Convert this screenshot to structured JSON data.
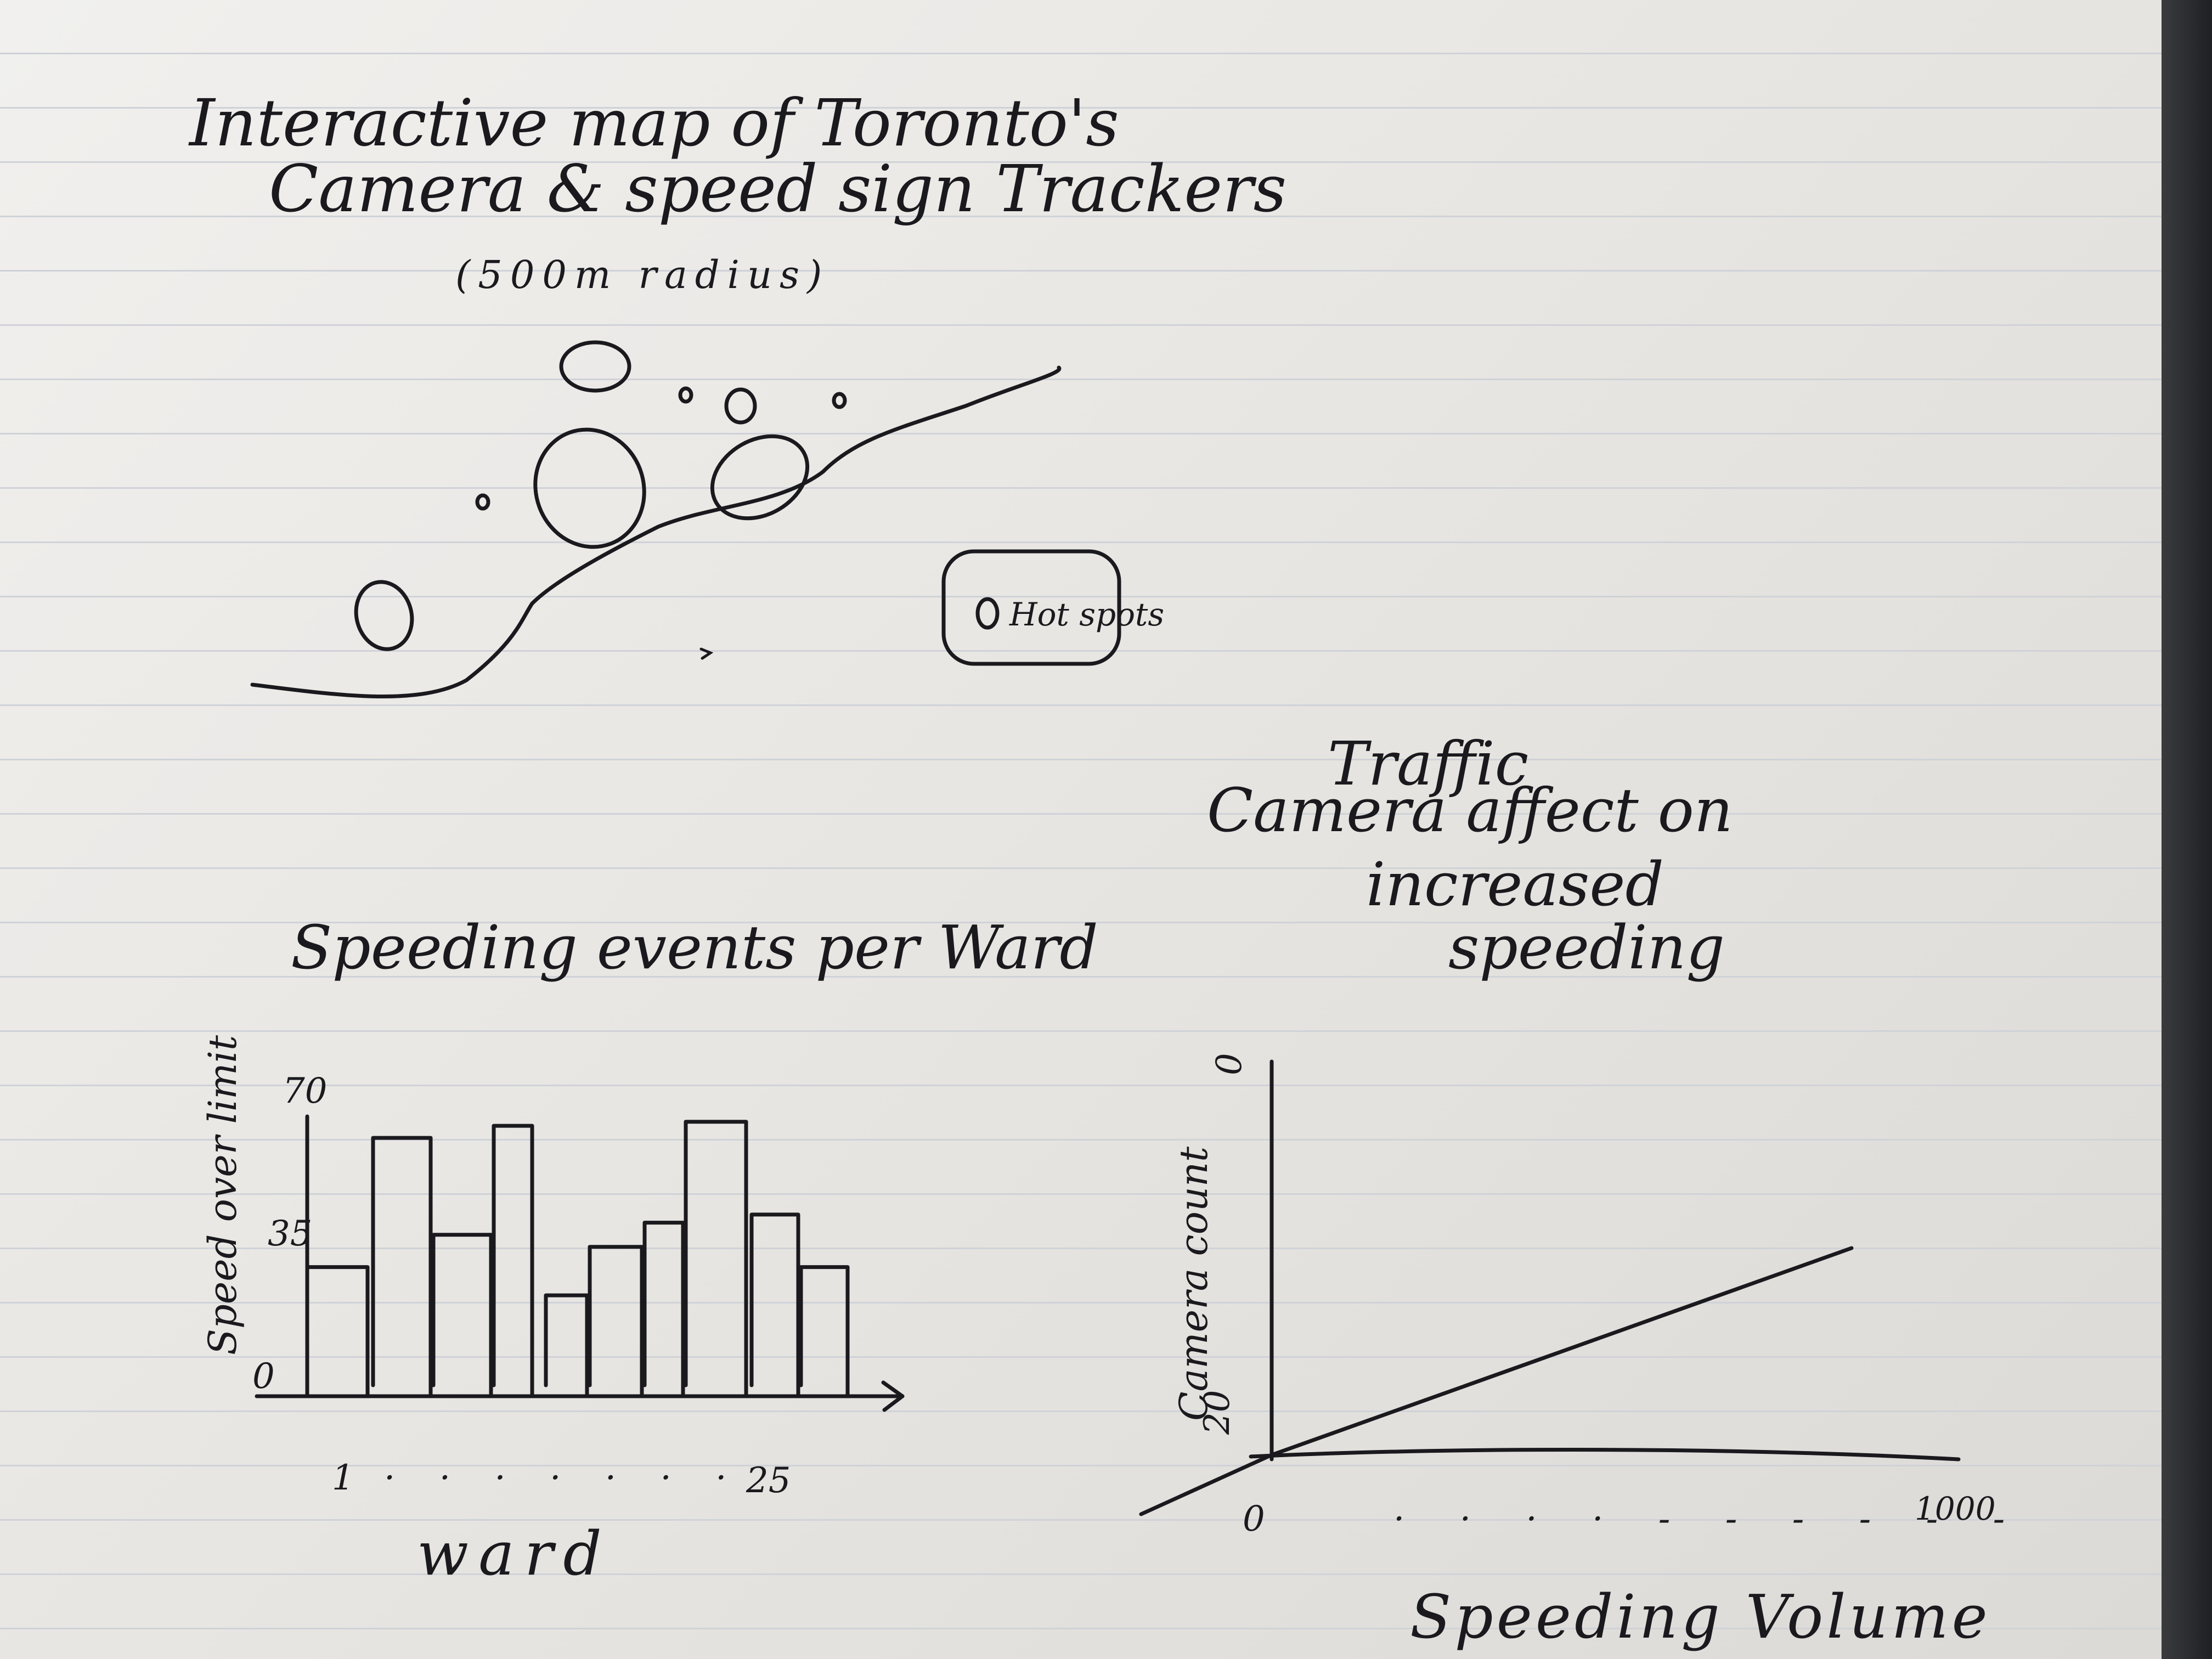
{
  "map": {
    "title_line1": "Interactive map of Toronto's",
    "title_line2": "Camera & speed sign Trackers",
    "title_line3": "(500m radius)",
    "legend_label": "Hot spots",
    "hotspots": [
      {
        "size": "medium"
      },
      {
        "size": "tiny"
      },
      {
        "size": "small"
      },
      {
        "size": "tiny"
      },
      {
        "size": "large"
      },
      {
        "size": "large"
      },
      {
        "size": "tiny"
      },
      {
        "size": "medium"
      }
    ]
  },
  "chart_data": [
    {
      "type": "bar",
      "title": "Speeding events per Ward",
      "xlabel": "ward",
      "ylabel": "Speed over limit",
      "x_tick_labels": [
        "1",
        "25"
      ],
      "y_tick_labels": [
        "0",
        "35",
        "70"
      ],
      "ylim": [
        0,
        70
      ],
      "values": [
        32,
        64,
        40,
        67,
        25,
        37,
        43,
        68,
        45,
        32
      ],
      "grid": false
    },
    {
      "type": "line",
      "title": "Traffic Camera affect on increased speeding",
      "xlabel": "Speeding Volume",
      "ylabel": "Camera count",
      "x_tick_labels": [
        "0",
        "1000"
      ],
      "y_tick_labels": [
        "20",
        "0"
      ],
      "grid": false
    }
  ]
}
